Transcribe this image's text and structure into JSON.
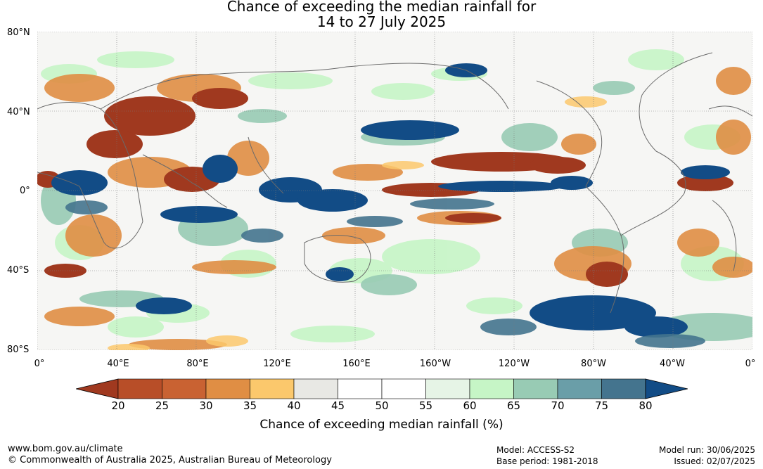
{
  "title": {
    "line1": "Chance of exceeding the median rainfall for",
    "line2": "14 to 27 July 2025"
  },
  "axes": {
    "lat_labels": [
      "80°N",
      "40°N",
      "0°",
      "40°S",
      "80°S"
    ],
    "lon_labels": [
      "0°",
      "40°E",
      "80°E",
      "120°E",
      "160°E",
      "160°W",
      "120°W",
      "80°W",
      "40°W",
      "0°"
    ]
  },
  "colorbar": {
    "ticks": [
      "20",
      "25",
      "30",
      "35",
      "40",
      "45",
      "50",
      "55",
      "60",
      "65",
      "70",
      "75",
      "80"
    ],
    "colors": [
      "#a0391f",
      "#b84e28",
      "#c96232",
      "#e08e44",
      "#fbc86c",
      "#e8e8e4",
      "#ffffff",
      "#ffffff",
      "#e6f4e6",
      "#c6f5c6",
      "#98cbb4",
      "#6a9ea8",
      "#44748e",
      "#124c86"
    ],
    "label": "Chance of exceeding median rainfall (%)"
  },
  "footer": {
    "website": "www.bom.gov.au/climate",
    "copyright": "© Commonwealth of Australia 2025, Australian Bureau of Meteorology",
    "model": "Model: ACCESS-S2",
    "base_period": "Base period: 1981-2018",
    "model_run": "Model run: 30/06/2025",
    "issued": "Issued: 02/07/2025"
  }
}
